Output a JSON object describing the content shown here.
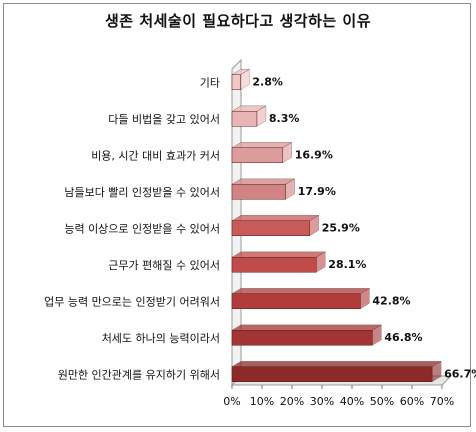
{
  "chart_data": {
    "type": "bar",
    "orientation": "horizontal",
    "title": "생존 처세술이 필요하다고 생각하는 이유",
    "categories": [
      "기타",
      "다들 비법을 갖고 있어서",
      "비용, 시간 대비 효과가 커서",
      "남들보다 빨리 인정받을 수 있어서",
      "능력 이상으로 인정받을 수 있어서",
      "근무가 편해질 수 있어서",
      "업무 능력 만으로는 인정받기 어려워서",
      "처세도 하나의 능력이라서",
      "원만한 인간관계를 유지하기 위해서"
    ],
    "values": [
      2.8,
      8.3,
      16.9,
      17.9,
      25.9,
      28.1,
      42.8,
      46.8,
      66.7
    ],
    "value_labels": [
      "2.8%",
      "8.3%",
      "16.9%",
      "17.9%",
      "25.9%",
      "28.1%",
      "42.8%",
      "46.8%",
      "66.7%"
    ],
    "xlim": [
      0,
      70
    ],
    "xticks": [
      "0%",
      "10%",
      "20%",
      "30%",
      "40%",
      "50%",
      "60%",
      "70%"
    ],
    "grid": false,
    "legend": "none",
    "colors": [
      "#f0c8c8",
      "#e8b4b4",
      "#dc9c9c",
      "#d08484",
      "#c85a5a",
      "#bf4b4b",
      "#b03c3c",
      "#a23434",
      "#8c2a2a"
    ]
  }
}
